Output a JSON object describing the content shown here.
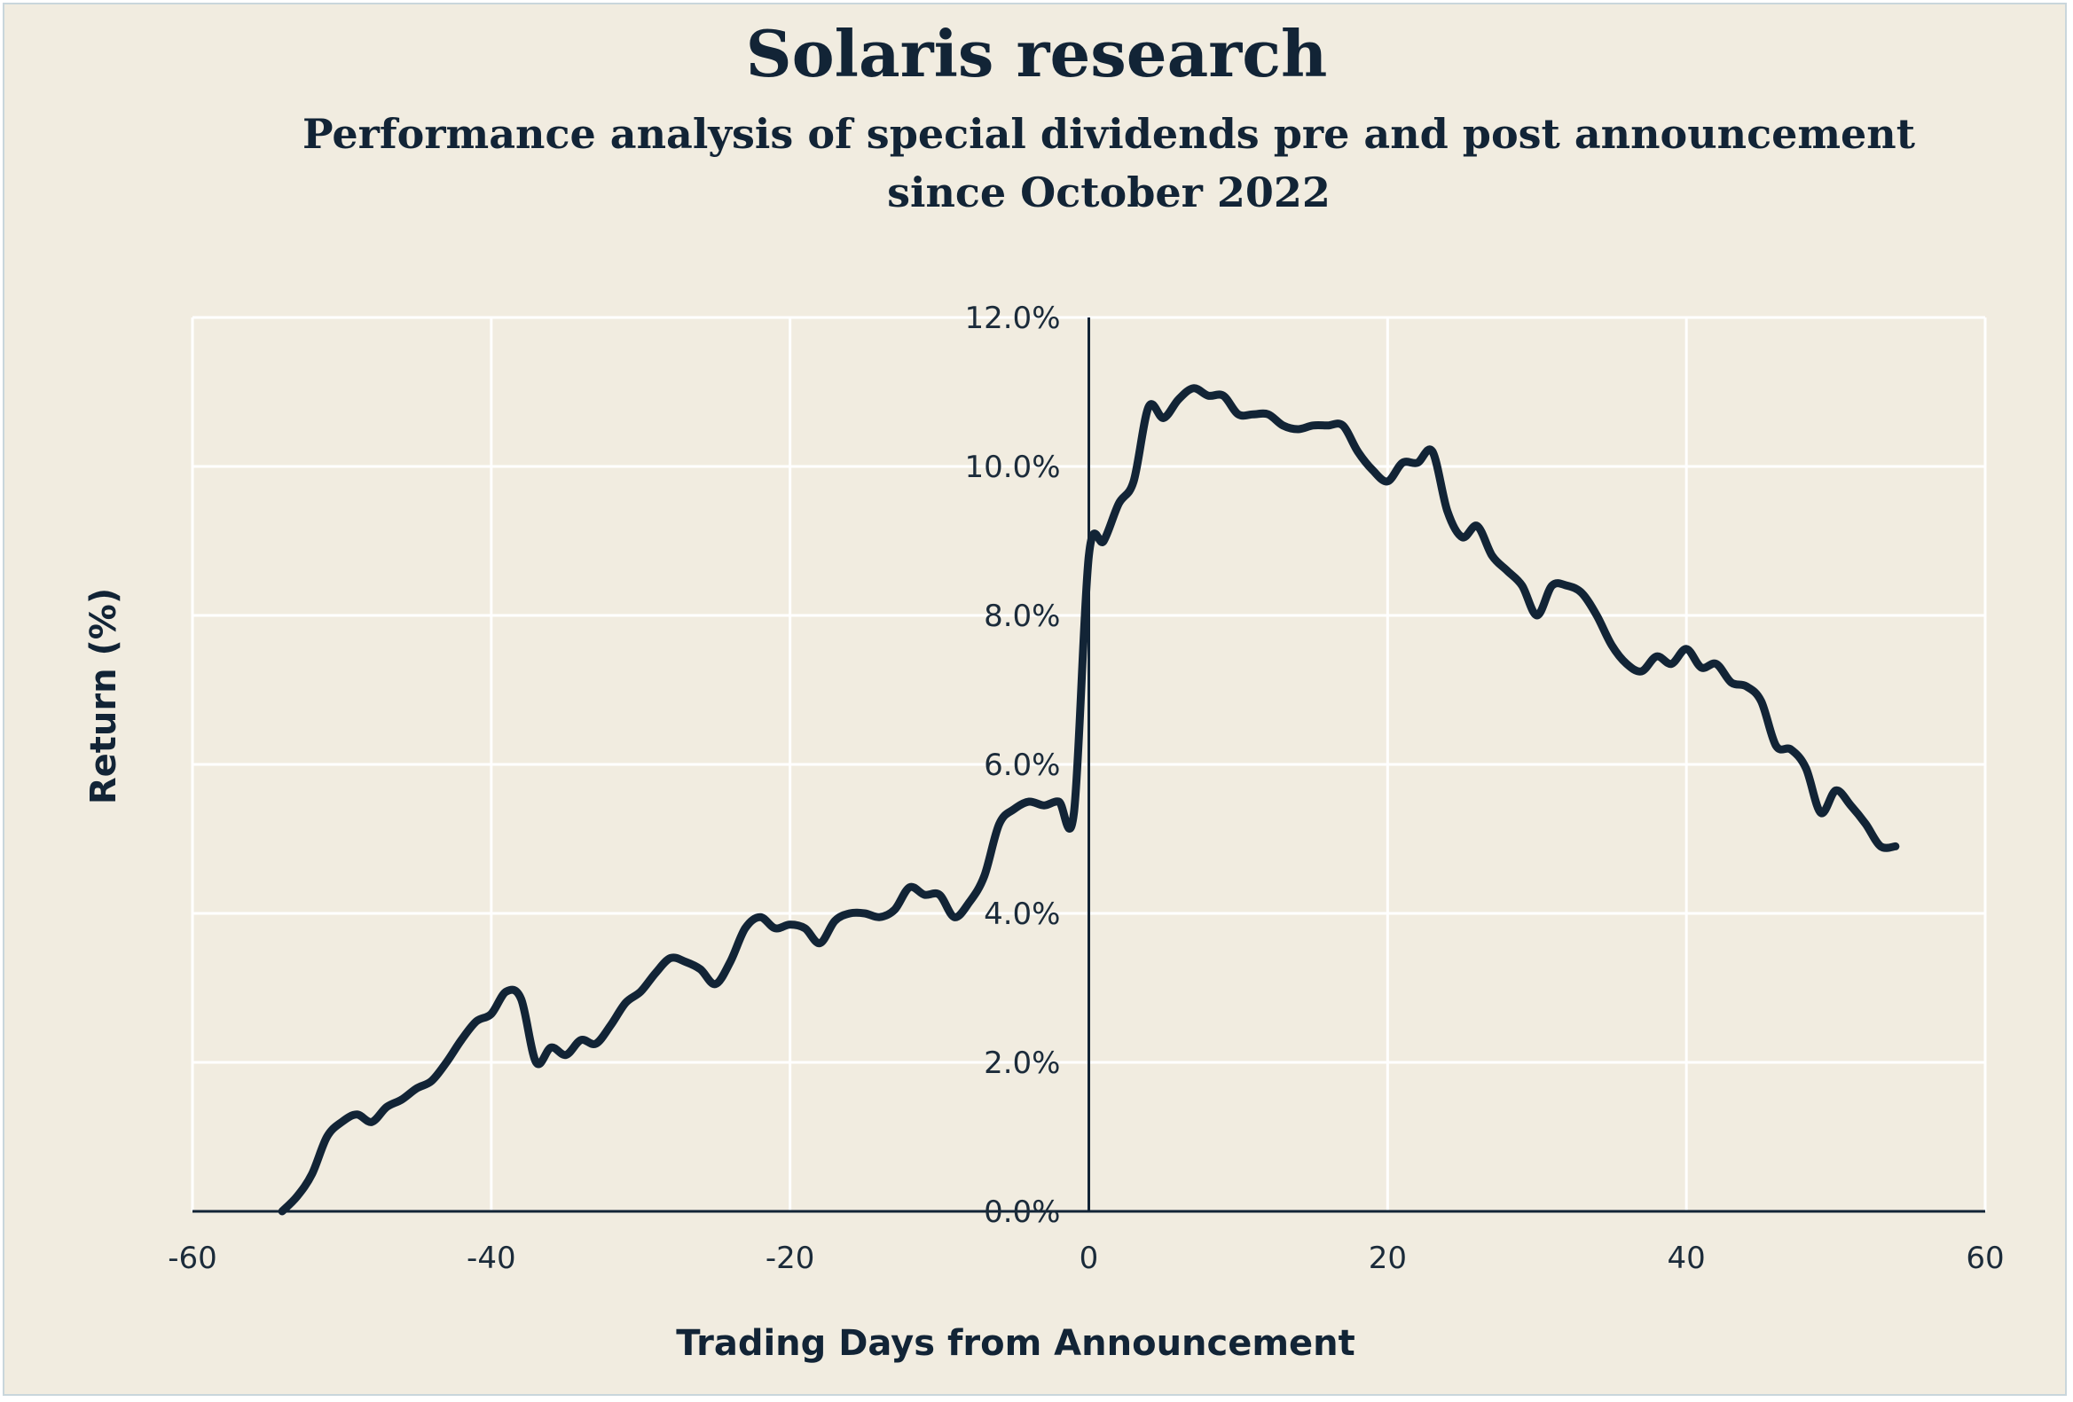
{
  "chart_data": {
    "type": "line",
    "title": "Solaris research",
    "subtitle": "Performance analysis of special dividends pre and post announcement since October 2022",
    "xlabel": "Trading Days from Announcement",
    "ylabel": "Return (%)",
    "xlim": [
      -60,
      60
    ],
    "ylim": [
      0,
      12
    ],
    "x_ticks": [
      -60,
      -40,
      -20,
      0,
      20,
      40,
      60
    ],
    "x_tick_labels": [
      "-60",
      "-40",
      "-20",
      "0",
      "20",
      "40",
      "60"
    ],
    "y_ticks": [
      0,
      2,
      4,
      6,
      8,
      10,
      12
    ],
    "y_tick_labels": [
      "0.0%",
      "2.0%",
      "4.0%",
      "6.0%",
      "8.0%",
      "10.0%",
      "12.0%"
    ],
    "grid": true,
    "legend": "none",
    "colors": {
      "line": "#122436",
      "grid": "#ffffff",
      "axis": "#122436",
      "background": "#f1ece0"
    },
    "series": [
      {
        "x": [
          -54,
          -53,
          -52,
          -51,
          -50,
          -49,
          -48,
          -47,
          -46,
          -45,
          -44,
          -43,
          -42,
          -41,
          -40,
          -39,
          -38,
          -37,
          -36,
          -35,
          -34,
          -33,
          -32,
          -31,
          -30,
          -29,
          -28,
          -27,
          -26,
          -25,
          -24,
          -23,
          -22,
          -21,
          -20,
          -19,
          -18,
          -17,
          -16,
          -15,
          -14,
          -13,
          -12,
          -11,
          -10,
          -9,
          -8,
          -7,
          -6,
          -5,
          -4,
          -3,
          -2,
          -1,
          0,
          1,
          2,
          3,
          4,
          5,
          6,
          7,
          8,
          9,
          10,
          11,
          12,
          13,
          14,
          15,
          16,
          17,
          18,
          19,
          20,
          21,
          22,
          23,
          24,
          25,
          26,
          27,
          28,
          29,
          30,
          31,
          32,
          33,
          34,
          35,
          36,
          37,
          38,
          39,
          40,
          41,
          42,
          43,
          44,
          45,
          46,
          47,
          48,
          49,
          50,
          51,
          52,
          53,
          54
        ],
        "values": [
          0.0,
          0.2,
          0.5,
          1.0,
          1.2,
          1.3,
          1.2,
          1.4,
          1.5,
          1.65,
          1.75,
          2.0,
          2.3,
          2.55,
          2.65,
          2.95,
          2.85,
          2.0,
          2.2,
          2.1,
          2.3,
          2.25,
          2.5,
          2.8,
          2.95,
          3.2,
          3.4,
          3.35,
          3.25,
          3.05,
          3.35,
          3.8,
          3.95,
          3.8,
          3.85,
          3.8,
          3.6,
          3.9,
          4.0,
          4.0,
          3.95,
          4.05,
          4.35,
          4.25,
          4.25,
          3.95,
          4.15,
          4.5,
          5.2,
          5.4,
          5.5,
          5.45,
          5.5,
          5.35,
          8.8,
          9.0,
          9.5,
          9.8,
          10.8,
          10.65,
          10.9,
          11.05,
          10.95,
          10.95,
          10.7,
          10.7,
          10.7,
          10.55,
          10.5,
          10.55,
          10.55,
          10.55,
          10.2,
          9.95,
          9.8,
          10.05,
          10.05,
          10.2,
          9.4,
          9.05,
          9.2,
          8.8,
          8.6,
          8.4,
          8.0,
          8.4,
          8.4,
          8.3,
          8.0,
          7.6,
          7.35,
          7.25,
          7.45,
          7.35,
          7.55,
          7.3,
          7.35,
          7.1,
          7.05,
          6.85,
          6.25,
          6.2,
          5.95,
          5.35,
          5.65,
          5.45,
          5.2,
          4.9,
          4.9
        ]
      }
    ]
  }
}
